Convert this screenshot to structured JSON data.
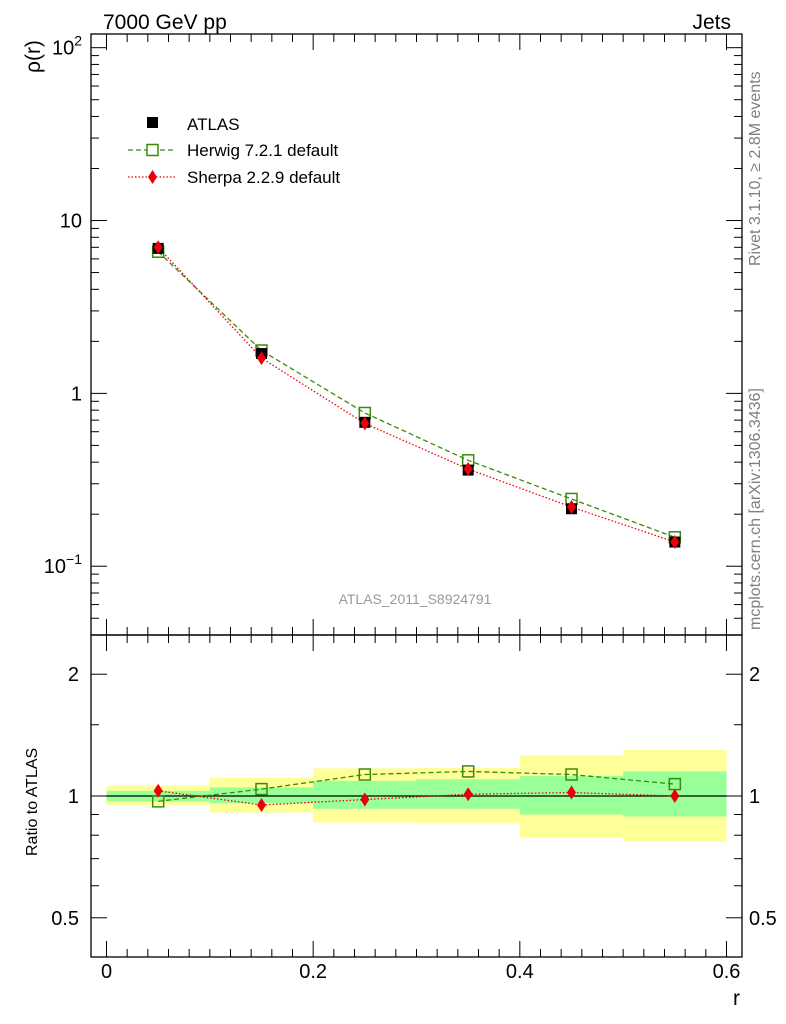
{
  "header": {
    "left": "7000 GeV pp",
    "right": "Jets"
  },
  "side_labels": {
    "rivet": "Rivet 3.1.10, ≥ 2.8M events",
    "mcplots": "mcplots.cern.ch [arXiv:1306.3436]"
  },
  "watermark": "ATLAS_2011_S8924791",
  "legend": {
    "atlas": "ATLAS",
    "herwig": "Herwig 7.2.1 default",
    "sherpa": "Sherpa 2.2.9 default"
  },
  "colors": {
    "atlas": "#000000",
    "herwig": "#3a8a0a",
    "sherpa": "#e8000b",
    "band_inner": "#99ff99",
    "band_outer": "#ffff99",
    "watermark": "#999999"
  },
  "chart_data": [
    {
      "type": "scatter",
      "panel": "main",
      "ylabel": "ρ(r)",
      "yscale": "log",
      "ylim": [
        0.04,
        120
      ],
      "xlim": [
        -0.015,
        0.615
      ],
      "y_ticks": [
        {
          "value": 0.1,
          "base": "10",
          "exp": "−1"
        },
        {
          "value": 1,
          "label": "1"
        },
        {
          "value": 10,
          "label": "10"
        },
        {
          "value": 100,
          "base": "10",
          "exp": "2"
        }
      ],
      "series": [
        {
          "name": "ATLAS",
          "marker": "square-filled",
          "x": [
            0.05,
            0.15,
            0.25,
            0.35,
            0.45,
            0.55
          ],
          "y": [
            6.9,
            1.7,
            0.68,
            0.36,
            0.215,
            0.138
          ]
        },
        {
          "name": "Herwig 7.2.1 default",
          "marker": "square-open",
          "line": "dashed",
          "x": [
            0.05,
            0.15,
            0.25,
            0.35,
            0.45,
            0.55
          ],
          "y": [
            6.6,
            1.77,
            0.77,
            0.41,
            0.245,
            0.147
          ]
        },
        {
          "name": "Sherpa 2.2.9 default",
          "marker": "diamond",
          "line": "dotted",
          "x": [
            0.05,
            0.15,
            0.25,
            0.35,
            0.45,
            0.55
          ],
          "y": [
            7.0,
            1.6,
            0.67,
            0.365,
            0.22,
            0.138
          ]
        }
      ]
    },
    {
      "type": "line",
      "panel": "ratio",
      "xlabel": "r",
      "ylabel": "Ratio to ATLAS",
      "yscale": "log",
      "ylim": [
        0.4,
        2.5
      ],
      "xlim": [
        -0.015,
        0.615
      ],
      "x_ticks": [
        0,
        0.2,
        0.4,
        0.6
      ],
      "x_tick_labels": [
        "0",
        "0.2",
        "0.4",
        "0.6"
      ],
      "y_ticks": [
        0.5,
        1,
        2
      ],
      "y_tick_labels": [
        "0.5",
        "1",
        "2"
      ],
      "bands": [
        {
          "x0": 0.0,
          "x1": 0.1,
          "inner": [
            0.97,
            1.03
          ],
          "outer": [
            0.95,
            1.06
          ]
        },
        {
          "x0": 0.1,
          "x1": 0.2,
          "inner": [
            0.96,
            1.05
          ],
          "outer": [
            0.91,
            1.11
          ]
        },
        {
          "x0": 0.2,
          "x1": 0.3,
          "inner": [
            0.93,
            1.09
          ],
          "outer": [
            0.86,
            1.17
          ]
        },
        {
          "x0": 0.3,
          "x1": 0.4,
          "inner": [
            0.93,
            1.1
          ],
          "outer": [
            0.855,
            1.175
          ]
        },
        {
          "x0": 0.4,
          "x1": 0.5,
          "inner": [
            0.9,
            1.12
          ],
          "outer": [
            0.79,
            1.26
          ]
        },
        {
          "x0": 0.5,
          "x1": 0.6,
          "inner": [
            0.89,
            1.15
          ],
          "outer": [
            0.77,
            1.3
          ]
        }
      ],
      "series": [
        {
          "name": "Herwig 7.2.1 default",
          "marker": "square-open",
          "line": "dashed",
          "x": [
            0.05,
            0.15,
            0.25,
            0.35,
            0.45,
            0.55
          ],
          "y": [
            0.97,
            1.04,
            1.13,
            1.15,
            1.13,
            1.07
          ]
        },
        {
          "name": "Sherpa 2.2.9 default",
          "marker": "diamond",
          "line": "dotted",
          "x": [
            0.05,
            0.15,
            0.25,
            0.35,
            0.45,
            0.55
          ],
          "y": [
            1.03,
            0.95,
            0.98,
            1.01,
            1.02,
            1.0
          ]
        }
      ]
    }
  ]
}
